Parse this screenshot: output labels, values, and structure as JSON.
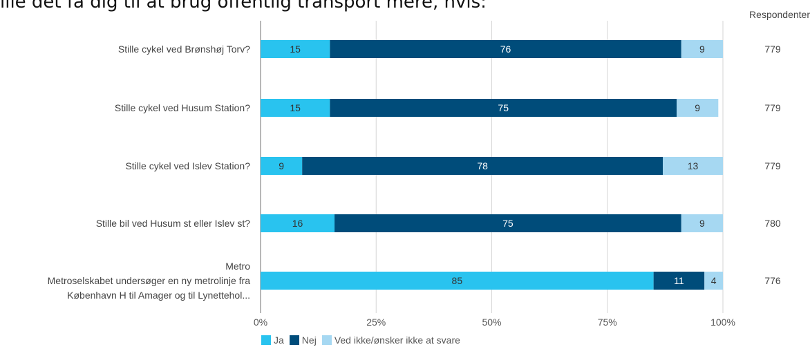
{
  "page": {
    "title": "ille det få dig til at brug offentlig transport mere, hvis:"
  },
  "chart_data": {
    "type": "bar",
    "orientation": "horizontal",
    "stacked": true,
    "percent": true,
    "categories": [
      [
        "Stille cykel ved Brønshøj Torv?"
      ],
      [
        "Stille cykel ved Husum Station?"
      ],
      [
        "Stille cykel ved Islev Station?"
      ],
      [
        "Stille bil ved Husum st eller Islev st?"
      ],
      [
        "Metro",
        "Metroselskabet undersøger en ny metrolinje fra",
        "København H til Amager og til Lynettehol..."
      ]
    ],
    "series": [
      {
        "name": "Ja",
        "color": "#29c3ef",
        "values": [
          15,
          15,
          9,
          16,
          85
        ]
      },
      {
        "name": "Nej",
        "color": "#004c7a",
        "values": [
          76,
          75,
          78,
          75,
          11
        ]
      },
      {
        "name": "Ved ikke/ønsker ikke at svare",
        "color": "#a6d8f2",
        "values": [
          9,
          9,
          13,
          9,
          4
        ]
      }
    ],
    "respondents_label": "Respondenter",
    "respondents": [
      "779",
      "779",
      "779",
      "780",
      "776"
    ],
    "xticks": [
      "0%",
      "25%",
      "50%",
      "75%",
      "100%"
    ],
    "xlim": [
      0,
      100
    ],
    "grid": true,
    "legend_position": "bottom"
  }
}
